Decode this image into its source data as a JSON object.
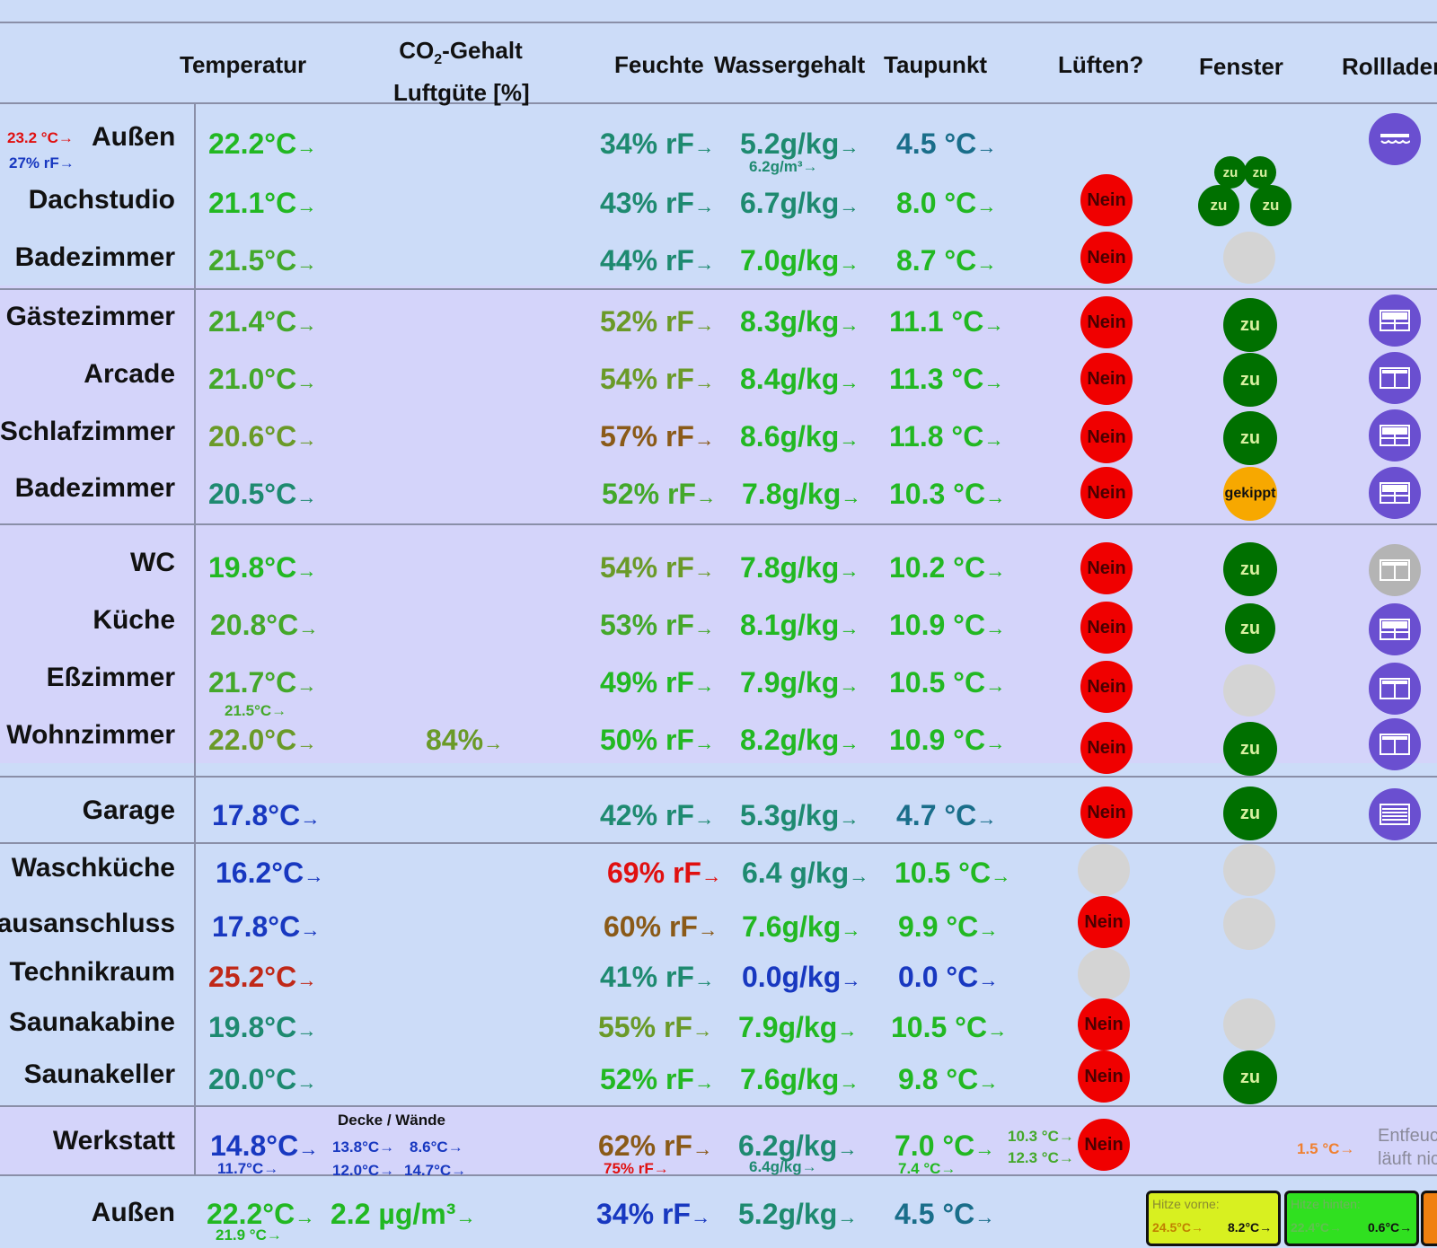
{
  "header": {
    "temp": "Temperatur",
    "co2_line1": "CO",
    "co2_sub": "2",
    "co2_rest": "-Gehalt",
    "co2_line2": "Luftgüte [%]",
    "humidity": "Feuchte",
    "water": "Wassergehalt",
    "dew": "Taupunkt",
    "vent": "Lüften?",
    "window": "Fenster",
    "shutter": "Rollladen"
  },
  "aussen_top": {
    "mini_temp": "23.2 °C→",
    "mini_hum": "27% rF→",
    "name": "Außen",
    "temp": "22.2°C",
    "hum": "34% rF",
    "water": "5.2g/kg",
    "water_sub": "6.2g/m³→",
    "dew": "4.5 °C"
  },
  "rows": {
    "dachstudio": {
      "name": "Dachstudio",
      "temp": "21.1°C",
      "hum": "43% rF",
      "water": "6.7g/kg",
      "dew": "8.0 °C",
      "vent": "Nein",
      "w1": "zu",
      "w2": "zu",
      "w3": "zu",
      "w4": "zu"
    },
    "bad1": {
      "name": "Badezimmer",
      "temp": "21.5°C",
      "hum": "44% rF",
      "water": "7.0g/kg",
      "dew": "8.7 °C",
      "vent": "Nein"
    },
    "gaeste": {
      "name": "Gästezimmer",
      "temp": "21.4°C",
      "hum": "52% rF",
      "water": "8.3g/kg",
      "dew": "11.1 °C",
      "vent": "Nein",
      "window": "zu"
    },
    "arcade": {
      "name": "Arcade",
      "temp": "21.0°C",
      "hum": "54% rF",
      "water": "8.4g/kg",
      "dew": "11.3 °C",
      "vent": "Nein",
      "window": "zu"
    },
    "schlaf": {
      "name": "Schlafzimmer",
      "temp": "20.6°C",
      "hum": "57% rF",
      "water": "8.6g/kg",
      "dew": "11.8 °C",
      "vent": "Nein",
      "window": "zu"
    },
    "bad2": {
      "name": "Badezimmer",
      "temp": "20.5°C",
      "hum": "52% rF",
      "water": "7.8g/kg",
      "dew": "10.3 °C",
      "vent": "Nein",
      "window": "gekippt"
    },
    "wc": {
      "name": "WC",
      "temp": "19.8°C",
      "hum": "54% rF",
      "water": "7.8g/kg",
      "dew": "10.2 °C",
      "vent": "Nein",
      "window": "zu"
    },
    "kueche": {
      "name": "Küche",
      "temp": "20.8°C",
      "hum": "53% rF",
      "water": "8.1g/kg",
      "dew": "10.9 °C",
      "vent": "Nein",
      "window": "zu"
    },
    "ess": {
      "name": "Eßzimmer",
      "temp": "21.7°C",
      "temp_sub": "21.5°C→",
      "hum": "49% rF",
      "water": "7.9g/kg",
      "dew": "10.5 °C",
      "vent": "Nein"
    },
    "wohn": {
      "name": "Wohnzimmer",
      "temp": "22.0°C",
      "co2": "84%",
      "hum": "50% rF",
      "water": "8.2g/kg",
      "dew": "10.9 °C",
      "vent": "Nein",
      "window": "zu"
    },
    "garage": {
      "name": "Garage",
      "temp": "17.8°C",
      "hum": "42% rF",
      "water": "5.3g/kg",
      "dew": "4.7 °C",
      "vent": "Nein",
      "window": "zu"
    },
    "wasch": {
      "name": "Waschküche",
      "temp": "16.2°C",
      "hum": "69% rF",
      "water": "6.4 g/kg",
      "dew": "10.5 °C"
    },
    "haus": {
      "name": "Hausanschluss",
      "temp": "17.8°C",
      "hum": "60% rF",
      "water": "7.6g/kg",
      "dew": "9.9 °C",
      "vent": "Nein"
    },
    "technik": {
      "name": "Technikraum",
      "temp": "25.2°C",
      "hum": "41% rF",
      "water": "0.0g/kg",
      "dew": "0.0 °C"
    },
    "saunakabine": {
      "name": "Saunakabine",
      "temp": "19.8°C",
      "hum": "55% rF",
      "water": "7.9g/kg",
      "dew": "10.5 °C",
      "vent": "Nein"
    },
    "saunakeller": {
      "name": "Saunakeller",
      "temp": "20.0°C",
      "hum": "52% rF",
      "water": "7.6g/kg",
      "dew": "9.8 °C",
      "vent": "Nein",
      "window": "zu"
    }
  },
  "werkstatt": {
    "name": "Werkstatt",
    "temp": "14.8°C",
    "temp_sub": "11.7°C→",
    "walls_label": "Decke / Wände",
    "d1": "13.8°C→",
    "d2": "8.6°C→",
    "d3": "12.0°C→",
    "d4": "14.7°C→",
    "hum": "62% rF",
    "hum_sub": "75% rF→",
    "water": "6.2g/kg",
    "water_sub": "6.4g/kg→",
    "dew": "7.0 °C",
    "dew_sub": "7.4 °C→",
    "side1": "10.3 °C→",
    "side2": "12.3 °C→",
    "vent": "Nein",
    "orange": "1.5 °C→",
    "entf1": "Entfeuchter",
    "entf2": "läuft nicht"
  },
  "aussen_bottom": {
    "name": "Außen",
    "temp": "22.2°C",
    "temp_sub": "21.9 °C→",
    "pm": "2.2 µg/m³",
    "hum": "34% rF",
    "water": "5.2g/kg",
    "dew": "4.5 °C",
    "hitze_vorne_label": "Hitze vorne:",
    "hitze_vorne_v1": "24.5°C→",
    "hitze_vorne_v2": "8.2°C→",
    "hitze_hinten_label": "Hitze hinten:",
    "hitze_hinten_v1": "22.4°C→",
    "hitze_hinten_v2": "0.6°C→"
  },
  "arrow": "→",
  "colors": {
    "background": "#ccdcf8",
    "band": "#d4d4fa",
    "red_circle": "#f00000",
    "green_circle": "#007000",
    "shutter": "#6a4fd0"
  }
}
